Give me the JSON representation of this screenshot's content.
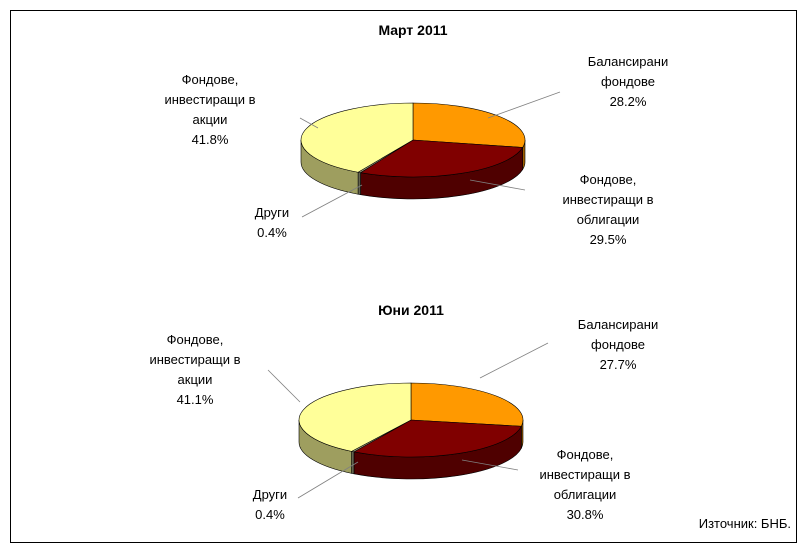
{
  "chart_data": [
    {
      "type": "pie3d",
      "title": "Март 2011",
      "categories": [
        "Балансирани фондове",
        "Фондове, инвестиращи в облигации",
        "Други",
        "Фондове, инвестиращи в акции"
      ],
      "values": [
        28.2,
        29.5,
        0.4,
        41.8
      ],
      "value_labels": [
        "28.2%",
        "29.5%",
        "0.4%",
        "41.8%"
      ],
      "colors": [
        "#FF9900",
        "#800000",
        "#A0A080",
        "#FFFF99"
      ]
    },
    {
      "type": "pie3d",
      "title": "Юни 2011",
      "categories": [
        "Балансирани фондове",
        "Фондове, инвестиращи в облигации",
        "Други",
        "Фондове, инвестиращи в акции"
      ],
      "values": [
        27.7,
        30.8,
        0.4,
        41.1
      ],
      "value_labels": [
        "27.7%",
        "30.8%",
        "0.4%",
        "41.1%"
      ],
      "colors": [
        "#FF9900",
        "#800000",
        "#A0A080",
        "#FFFF99"
      ]
    }
  ],
  "source": "Източник: БНБ."
}
